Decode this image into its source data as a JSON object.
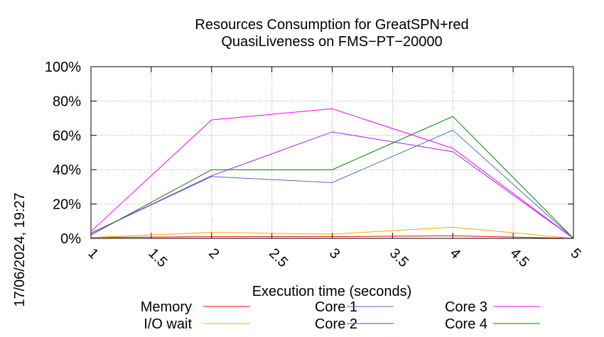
{
  "chart_data": {
    "type": "line",
    "title_line1": "Resources Consumption for GreatSPN+red",
    "title_line2": "QuasiLiveness on FMS−PT−20000",
    "xlabel": "Execution time (seconds)",
    "ylabel": "",
    "side_label": "17/06/2024, 19:27",
    "x": [
      1,
      2,
      3,
      4,
      5
    ],
    "xlim": [
      1,
      5
    ],
    "ylim": [
      0,
      100
    ],
    "x_ticks": [
      "1",
      "1.5",
      "2",
      "2.5",
      "3",
      "3.5",
      "4",
      "4.5",
      "5"
    ],
    "y_ticks": [
      "0%",
      "20%",
      "40%",
      "60%",
      "80%",
      "100%"
    ],
    "grid": true,
    "legend_position": "bottom",
    "series": [
      {
        "name": "Memory",
        "color": "#ff0000",
        "values": [
          0.5,
          1,
          1,
          1.5,
          0
        ]
      },
      {
        "name": "I/O wait",
        "color": "#ffa500",
        "values": [
          0.5,
          3.5,
          2.5,
          6.5,
          0
        ]
      },
      {
        "name": "Core 1",
        "color": "#4472c4",
        "values": [
          3,
          36,
          32.5,
          63,
          0
        ]
      },
      {
        "name": "Core 2",
        "color": "#a020f0",
        "values": [
          3,
          36.5,
          62,
          50.5,
          0
        ]
      },
      {
        "name": "Core 3",
        "color": "#ff00ff",
        "values": [
          4,
          69,
          75.5,
          52.5,
          0
        ]
      },
      {
        "name": "Core 4",
        "color": "#008000",
        "values": [
          2,
          40,
          40,
          71,
          0
        ]
      }
    ]
  }
}
